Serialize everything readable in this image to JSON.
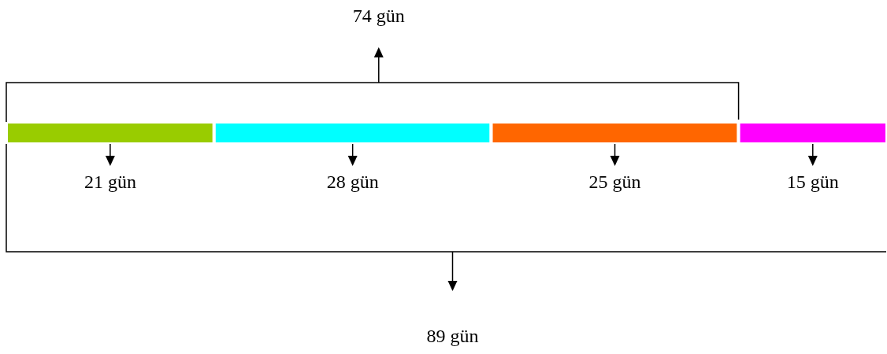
{
  "chart_data": {
    "type": "bar",
    "orientation": "horizontal",
    "stacked": true,
    "categories": [
      null
    ],
    "series": [
      {
        "color": "#99cc00",
        "values": [
          21
        ],
        "value_labels": [
          "21 gün"
        ]
      },
      {
        "color": "#00ffff",
        "values": [
          28
        ],
        "value_labels": [
          "28 gün"
        ]
      },
      {
        "color": "#ff6600",
        "values": [
          25
        ],
        "value_labels": [
          "25 gün"
        ]
      },
      {
        "color": "#ff00ff",
        "values": [
          15
        ],
        "value_labels": [
          "15 gün"
        ]
      }
    ],
    "annotations": [
      "74 gün",
      "89 gün"
    ]
  }
}
